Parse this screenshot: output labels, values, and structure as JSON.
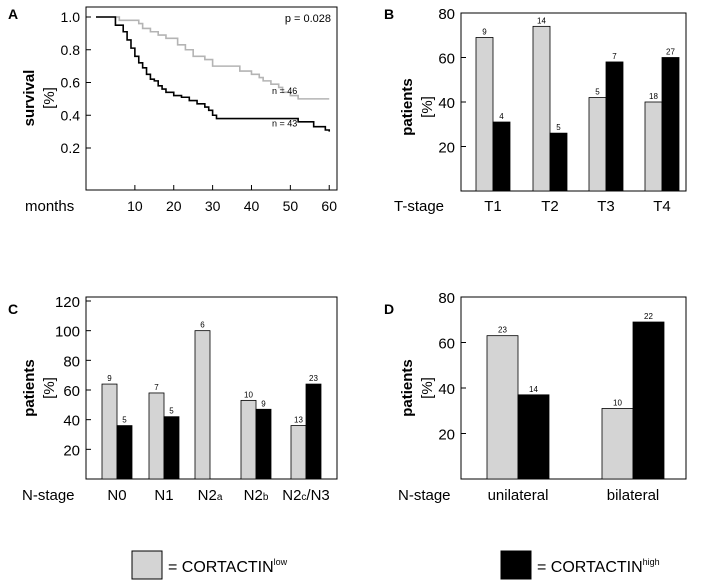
{
  "colors": {
    "low": "#d4d4d4",
    "high": "#000000",
    "low_line": "#b4b4b4",
    "high_line": "#000000"
  },
  "panels": {
    "A": "A",
    "B": "B",
    "C": "C",
    "D": "D"
  },
  "legend": {
    "low_prefix": "= CORTACTIN",
    "low_sup": "low",
    "high_prefix": "= CORTACTIN",
    "high_sup": "high"
  },
  "chart_data": [
    {
      "panel": "A",
      "type": "line",
      "ylabel_bold": "survival",
      "ylabel_unit": "[%]",
      "xlabel": "months",
      "xlim": [
        0,
        62
      ],
      "ylim": [
        0.1,
        1.0
      ],
      "x_ticks": [
        "10",
        "20",
        "30",
        "40",
        "50",
        "60"
      ],
      "y_ticks": [
        "1.0",
        "0.8",
        "0.6",
        "0.4",
        "0.2"
      ],
      "p_value": "p = 0.028",
      "series": [
        {
          "name": "CORTACTIN low",
          "n_label": "n = 46",
          "points": [
            [
              0,
              1.0
            ],
            [
              5,
              1.0
            ],
            [
              6,
              0.98
            ],
            [
              10,
              0.98
            ],
            [
              11,
              0.96
            ],
            [
              12,
              0.93
            ],
            [
              14,
              0.91
            ],
            [
              16,
              0.89
            ],
            [
              18,
              0.87
            ],
            [
              20,
              0.87
            ],
            [
              21,
              0.83
            ],
            [
              23,
              0.8
            ],
            [
              25,
              0.76
            ],
            [
              28,
              0.74
            ],
            [
              30,
              0.7
            ],
            [
              35,
              0.7
            ],
            [
              37,
              0.67
            ],
            [
              40,
              0.65
            ],
            [
              42,
              0.63
            ],
            [
              43,
              0.61
            ],
            [
              45,
              0.59
            ],
            [
              47,
              0.57
            ],
            [
              48,
              0.54
            ],
            [
              50,
              0.52
            ],
            [
              52,
              0.5
            ],
            [
              60,
              0.5
            ]
          ]
        },
        {
          "name": "CORTACTIN high",
          "n_label": "n = 43",
          "points": [
            [
              0,
              1.0
            ],
            [
              4,
              1.0
            ],
            [
              5,
              0.95
            ],
            [
              7,
              0.91
            ],
            [
              8,
              0.86
            ],
            [
              9,
              0.81
            ],
            [
              10,
              0.76
            ],
            [
              11,
              0.72
            ],
            [
              12,
              0.69
            ],
            [
              13,
              0.65
            ],
            [
              14,
              0.62
            ],
            [
              15,
              0.61
            ],
            [
              16,
              0.58
            ],
            [
              17,
              0.56
            ],
            [
              18,
              0.54
            ],
            [
              20,
              0.52
            ],
            [
              22,
              0.51
            ],
            [
              24,
              0.49
            ],
            [
              26,
              0.47
            ],
            [
              28,
              0.45
            ],
            [
              29,
              0.43
            ],
            [
              30,
              0.4
            ],
            [
              31,
              0.38
            ],
            [
              50,
              0.38
            ],
            [
              52,
              0.36
            ],
            [
              56,
              0.33
            ],
            [
              59,
              0.31
            ],
            [
              60,
              0.3
            ]
          ]
        }
      ]
    },
    {
      "panel": "B",
      "type": "bar",
      "ylabel_bold": "patients",
      "ylabel_unit": "[%]",
      "xlabel": "T-stage",
      "ylim": [
        0,
        80
      ],
      "y_ticks": [
        "80",
        "60",
        "40",
        "20"
      ],
      "categories": [
        "T1",
        "T2",
        "T3",
        "T4"
      ],
      "series": [
        {
          "name": "CORTACTIN low",
          "values": [
            69,
            74,
            42,
            40
          ],
          "counts": [
            "9",
            "14",
            "5",
            "18"
          ]
        },
        {
          "name": "CORTACTIN high",
          "values": [
            31,
            26,
            58,
            60
          ],
          "counts": [
            "4",
            "5",
            "7",
            "27"
          ]
        }
      ]
    },
    {
      "panel": "C",
      "type": "bar",
      "ylabel_bold": "patients",
      "ylabel_unit": "[%]",
      "xlabel": "N-stage",
      "ylim": [
        0,
        120
      ],
      "y_ticks": [
        "120",
        "100",
        "80",
        "60",
        "40",
        "20"
      ],
      "categories": [
        {
          "main": "N0",
          "sub": ""
        },
        {
          "main": "N1",
          "sub": ""
        },
        {
          "main": "N2",
          "sub": "a"
        },
        {
          "main": "N2",
          "sub": "b"
        },
        {
          "main": "N2",
          "sub": "c",
          "suffix": "/N3"
        }
      ],
      "series": [
        {
          "name": "CORTACTIN low",
          "values": [
            64,
            58,
            100,
            53,
            36
          ],
          "counts": [
            "9",
            "7",
            "6",
            "10",
            "13"
          ]
        },
        {
          "name": "CORTACTIN high",
          "values": [
            36,
            42,
            null,
            47,
            64
          ],
          "counts": [
            "5",
            "5",
            "",
            "9",
            "23"
          ]
        }
      ]
    },
    {
      "panel": "D",
      "type": "bar",
      "ylabel_bold": "patients",
      "ylabel_unit": "[%]",
      "xlabel": "N-stage",
      "ylim": [
        0,
        80
      ],
      "y_ticks": [
        "80",
        "60",
        "40",
        "20"
      ],
      "categories": [
        "unilateral",
        "bilateral"
      ],
      "series": [
        {
          "name": "CORTACTIN low",
          "values": [
            63,
            31
          ],
          "counts": [
            "23",
            "10"
          ]
        },
        {
          "name": "CORTACTIN high",
          "values": [
            37,
            69
          ],
          "counts": [
            "14",
            "22"
          ]
        }
      ]
    }
  ]
}
